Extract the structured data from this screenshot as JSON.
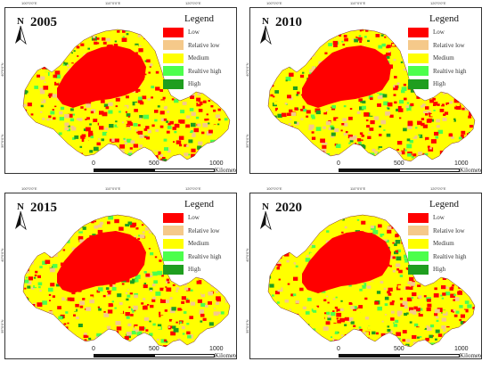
{
  "legend_title": "Legend",
  "north_label": "N",
  "scale": {
    "ticks": [
      "0",
      "500",
      "1000"
    ],
    "unit": "Kilometers"
  },
  "top_ticks": [
    "100°0'0\"E",
    "110°0'0\"E",
    "120°0'0\"E"
  ],
  "left_ticks": [
    "40°0'0\"N",
    "35°0'0\"N"
  ],
  "classes": [
    {
      "label": "Low",
      "color": "#ff0000"
    },
    {
      "label": "Relative low",
      "color": "#f5c98a"
    },
    {
      "label": "Medium",
      "color": "#ffff00"
    },
    {
      "label": "Realtive high",
      "color": "#4cff4c"
    },
    {
      "label": "High",
      "color": "#1f9e1f"
    }
  ],
  "panels": [
    {
      "year": "2005"
    },
    {
      "year": "2010"
    },
    {
      "year": "2015"
    },
    {
      "year": "2020"
    }
  ]
}
